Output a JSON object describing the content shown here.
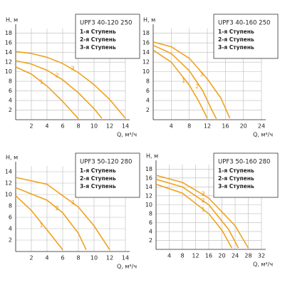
{
  "chart_data": [
    {
      "type": "line",
      "title": "UPF3 40-120 250",
      "y_label": "H, м",
      "x_label": "Q, м³/ч",
      "xlim": [
        0,
        14
      ],
      "xticks": [
        2,
        4,
        6,
        8,
        10,
        12,
        14
      ],
      "ylim": [
        0,
        19
      ],
      "yticks": [
        2,
        4,
        6,
        8,
        10,
        12,
        14,
        16,
        18
      ],
      "grid": true,
      "series": [
        {
          "name": "1-я Ступень",
          "label": "1",
          "color": "#f0a21e",
          "x": [
            0,
            2,
            4,
            6,
            8
          ],
          "values": [
            11,
            9.5,
            7,
            3.8,
            0.2
          ]
        },
        {
          "name": "2-я Ступень",
          "label": "2",
          "color": "#f0a21e",
          "x": [
            0,
            2,
            4,
            6,
            8,
            10,
            11
          ],
          "values": [
            12.3,
            11.6,
            10.3,
            8.3,
            5.6,
            2.3,
            0.3
          ]
        },
        {
          "name": "3-я Ступень",
          "label": "3",
          "color": "#f0a21e",
          "x": [
            0,
            2,
            4,
            6,
            8,
            10,
            12,
            14
          ],
          "values": [
            14.2,
            13.8,
            13,
            11.7,
            9.8,
            7.3,
            4.2,
            0.3
          ]
        }
      ]
    },
    {
      "type": "line",
      "title": "UPF3 40-160 250",
      "y_label": "H, м",
      "x_label": "Q, м³/ч",
      "xlim": [
        0,
        24
      ],
      "xticks": [
        4,
        8,
        12,
        16,
        20,
        24
      ],
      "ylim": [
        0,
        19
      ],
      "yticks": [
        2,
        4,
        6,
        8,
        10,
        12,
        14,
        16,
        18
      ],
      "grid": true,
      "series": [
        {
          "name": "1-я Ступень",
          "label": "1",
          "color": "#f0a21e",
          "x": [
            0,
            4,
            8,
            10,
            12
          ],
          "values": [
            14.5,
            12,
            7.2,
            4,
            0.3
          ]
        },
        {
          "name": "2-я Ступень",
          "label": "2",
          "color": "#f0a21e",
          "x": [
            0,
            4,
            8,
            11,
            13,
            14
          ],
          "values": [
            15.5,
            13.8,
            10.2,
            6,
            2,
            0.2
          ]
        },
        {
          "name": "3-я Ступень",
          "label": "3",
          "color": "#f0a21e",
          "x": [
            0,
            4,
            8,
            12,
            15,
            17
          ],
          "values": [
            16.2,
            15.2,
            12.8,
            8.5,
            4.5,
            0.3
          ]
        }
      ]
    },
    {
      "type": "line",
      "title": "UPF3 50-120 280",
      "y_label": "H, м",
      "x_label": "Q, м³/ч",
      "xlim": [
        0,
        14
      ],
      "xticks": [
        2,
        4,
        6,
        8,
        10,
        12,
        14
      ],
      "ylim": [
        0,
        15
      ],
      "yticks": [
        2,
        4,
        6,
        8,
        10,
        12,
        14
      ],
      "grid": true,
      "series": [
        {
          "name": "1-я Ступень",
          "label": "1",
          "color": "#f0a21e",
          "x": [
            0,
            2,
            4,
            6
          ],
          "values": [
            9.8,
            7.2,
            3.8,
            0.3
          ]
        },
        {
          "name": "2-я Ступень",
          "label": "2",
          "color": "#f0a21e",
          "x": [
            0,
            4,
            6,
            8,
            9
          ],
          "values": [
            11.2,
            9,
            6.8,
            3.2,
            0.3
          ]
        },
        {
          "name": "3-я Ступень",
          "label": "3",
          "color": "#f0a21e",
          "x": [
            0,
            4,
            8,
            10,
            12
          ],
          "values": [
            13,
            11.8,
            7.8,
            4.5,
            0.3
          ]
        }
      ]
    },
    {
      "type": "line",
      "title": "UPF3 50-160 280",
      "y_label": "H, м",
      "x_label": "Q, м³/ч",
      "xlim": [
        0,
        32
      ],
      "xticks": [
        4,
        8,
        12,
        16,
        20,
        24,
        28,
        32
      ],
      "ylim": [
        0,
        19
      ],
      "yticks": [
        2,
        4,
        6,
        8,
        10,
        12,
        14,
        16,
        18
      ],
      "grid": true,
      "series": [
        {
          "name": "1-я Ступень",
          "label": "1",
          "color": "#f0a21e",
          "x": [
            0,
            8,
            16,
            20,
            23
          ],
          "values": [
            14.6,
            12.6,
            8,
            4.3,
            0.3
          ]
        },
        {
          "name": "2-я Ступень",
          "label": "2",
          "color": "#f0a21e",
          "x": [
            0,
            8,
            16,
            22,
            25
          ],
          "values": [
            15.7,
            14,
            10,
            4.5,
            0.3
          ]
        },
        {
          "name": "3-я Ступень",
          "label": "3",
          "color": "#f0a21e",
          "x": [
            0,
            8,
            16,
            24,
            28
          ],
          "values": [
            16.6,
            15,
            11.5,
            5.3,
            0.3
          ]
        }
      ]
    }
  ]
}
